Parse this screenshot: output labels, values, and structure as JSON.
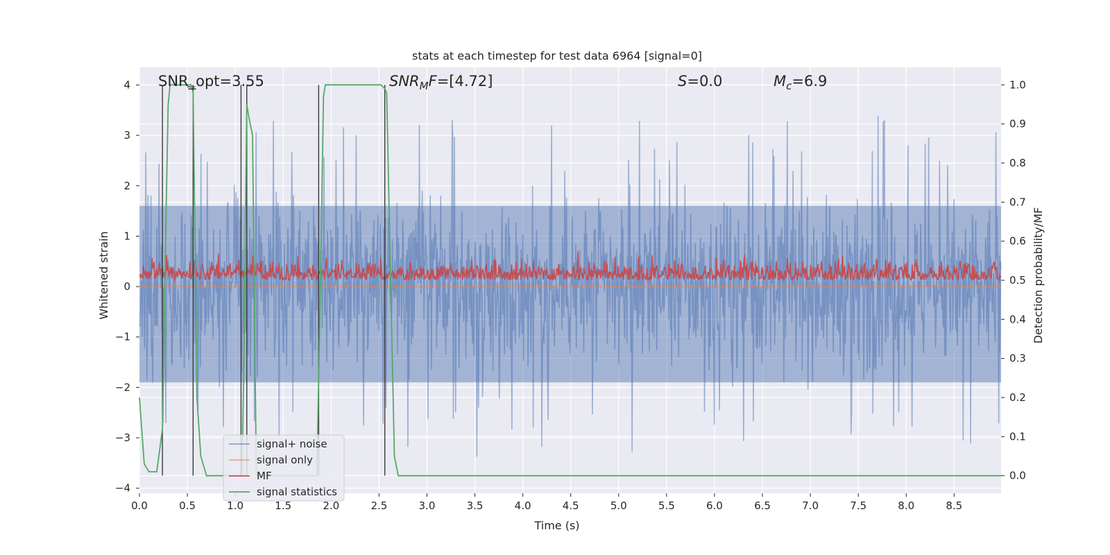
{
  "chart_data": {
    "type": "line",
    "title": "stats at each timestep for test data 6964 [signal=0]",
    "xlabel": "Time (s)",
    "ylabel": "Whitened strain",
    "ylabel_right": "Detection probability/MF",
    "xlim": [
      0.0,
      8.99
    ],
    "ylim": [
      -4.1,
      4.35
    ],
    "ylim_right": [
      -0.045,
      1.045
    ],
    "xticks": [
      "0.0",
      "0.5",
      "1.0",
      "1.5",
      "2.0",
      "2.5",
      "3.0",
      "3.5",
      "4.0",
      "4.5",
      "5.0",
      "5.5",
      "6.0",
      "6.5",
      "7.0",
      "7.5",
      "8.0",
      "8.5"
    ],
    "yticks": [
      "4",
      "3",
      "2",
      "1",
      "0",
      "−1",
      "−2",
      "−3",
      "−4"
    ],
    "yticks_right": [
      "1.0",
      "0.9",
      "0.8",
      "0.7",
      "0.6",
      "0.5",
      "0.4",
      "0.3",
      "0.2",
      "0.1",
      "0.0"
    ],
    "annotations": [
      {
        "name": "snr-opt",
        "text": "SNR_opt=3.55"
      },
      {
        "name": "snr-mf",
        "text": "SNR_MF=[4.72]"
      },
      {
        "name": "s-value",
        "text": "S=0.0"
      },
      {
        "name": "mc-value",
        "text": "M_c=6.9"
      }
    ],
    "legend": {
      "position": "lower-left",
      "entries": [
        {
          "label": "signal+ noise",
          "color": "#4c72b0"
        },
        {
          "label": "signal only",
          "color": "#dd8452"
        },
        {
          "label": "MF",
          "color": "#c44e52"
        },
        {
          "label": "signal statistics",
          "color": "#55a868"
        }
      ]
    },
    "series": [
      {
        "name": "signal+ noise",
        "axis": "left",
        "description": "whitened noise envelope",
        "positive_peak_max": 4.0,
        "negative_peak_min": -3.7
      },
      {
        "name": "signal only",
        "axis": "left",
        "values": "zero"
      },
      {
        "name": "MF",
        "axis": "right",
        "description": "matched filter output",
        "range": [
          0.49,
          0.61
        ]
      },
      {
        "name": "signal statistics",
        "axis": "right",
        "x": [
          0.0,
          0.05,
          0.1,
          0.18,
          0.24,
          0.28,
          0.3,
          0.32,
          0.5,
          0.54,
          0.56,
          0.6,
          0.64,
          0.7,
          0.75,
          1.0,
          1.07,
          1.09,
          1.12,
          1.14,
          1.18,
          1.22,
          1.24,
          1.28,
          1.85,
          1.89,
          1.92,
          1.94,
          1.96,
          2.0,
          2.45,
          2.52,
          2.56,
          2.58,
          2.62,
          2.66,
          2.7,
          3.0,
          7.2,
          8.99
        ],
        "y": [
          0.2,
          0.03,
          0.01,
          0.01,
          0.12,
          0.7,
          0.95,
          1.0,
          1.0,
          1.0,
          0.98,
          0.2,
          0.05,
          0.0,
          0.0,
          0.0,
          0.0,
          0.3,
          0.95,
          0.92,
          0.87,
          0.0,
          0.0,
          0.0,
          0.0,
          0.5,
          0.97,
          1.0,
          1.0,
          1.0,
          1.0,
          1.0,
          0.99,
          0.98,
          0.5,
          0.05,
          0.0,
          0.0,
          0.0,
          0.0
        ]
      },
      {
        "name": "event markers",
        "axis": "right",
        "type": "vlines",
        "x": [
          0.24,
          0.56,
          1.06,
          1.12,
          1.87,
          2.56
        ],
        "ymin": 0.0,
        "ymax": 1.0
      }
    ],
    "grid": true
  }
}
